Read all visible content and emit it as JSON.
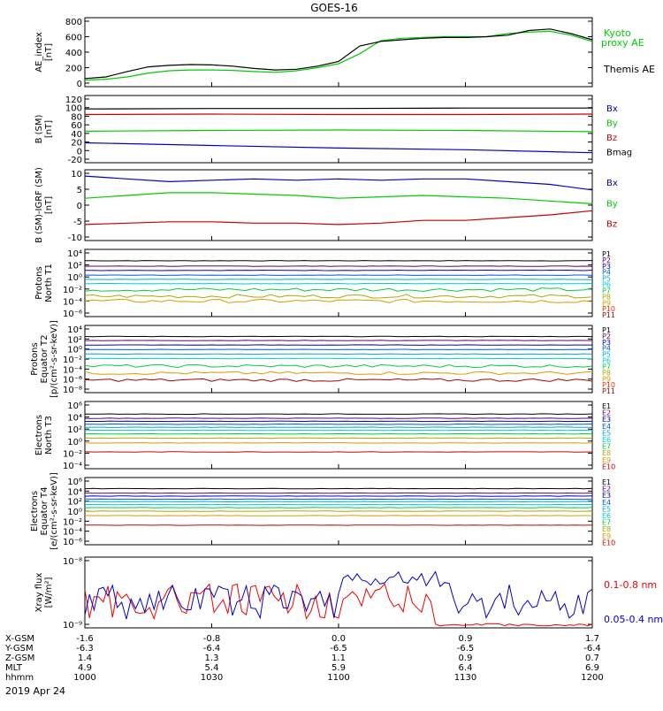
{
  "title": "GOES-16",
  "date_label": "2019 Apr 24",
  "chart_data": [
    {
      "type": "line",
      "ylabel": [
        "AE_index",
        "[nT]"
      ],
      "ylim": [
        0,
        800
      ],
      "yticks": [
        "800",
        "600",
        "400",
        "200",
        "0"
      ],
      "x": [
        1000,
        1005,
        1010,
        1015,
        1020,
        1025,
        1030,
        1035,
        1040,
        1045,
        1050,
        1055,
        1100,
        1105,
        1110,
        1115,
        1120,
        1125,
        1130,
        1135,
        1140,
        1145,
        1150,
        1155,
        1200
      ],
      "series": [
        {
          "name": "Kyoto proxy AE",
          "color": "#00cc00",
          "values": [
            40,
            50,
            80,
            130,
            160,
            170,
            170,
            165,
            150,
            140,
            160,
            200,
            250,
            380,
            550,
            580,
            590,
            600,
            600,
            600,
            640,
            660,
            670,
            620,
            540
          ]
        },
        {
          "name": "Themis AE",
          "color": "#000000",
          "values": [
            60,
            80,
            150,
            210,
            230,
            240,
            235,
            220,
            190,
            170,
            180,
            220,
            280,
            480,
            540,
            560,
            580,
            590,
            590,
            600,
            620,
            680,
            700,
            640,
            560
          ]
        }
      ],
      "legend": [
        "Kyoto proxy AE",
        "Themis AE"
      ]
    },
    {
      "type": "line",
      "ylabel": [
        "B (SM)",
        "[nT]"
      ],
      "ylim": [
        -20,
        120
      ],
      "yticks": [
        "120",
        "100",
        "80",
        "60",
        "40",
        "20",
        "0",
        "-20"
      ],
      "x": [
        1000,
        1030,
        1100,
        1130,
        1200
      ],
      "series": [
        {
          "name": "Bx",
          "color": "#0000cc",
          "values": [
            18,
            12,
            6,
            2,
            -5
          ]
        },
        {
          "name": "By",
          "color": "#00cc00",
          "values": [
            45,
            47,
            48,
            47,
            44
          ]
        },
        {
          "name": "Bz",
          "color": "#cc0000",
          "values": [
            84,
            85,
            84,
            84,
            85
          ]
        },
        {
          "name": "Bmag",
          "color": "#000000",
          "values": [
            97,
            98,
            98,
            99,
            99
          ]
        }
      ],
      "legend": [
        "Bx",
        "By",
        "Bz",
        "Bmag"
      ]
    },
    {
      "type": "line",
      "ylabel": [
        "B (SM)-IGRF (SM)",
        "[nT]"
      ],
      "ylim": [
        -12,
        11
      ],
      "yticks": [
        "10",
        "5",
        "0",
        "-5",
        "-10"
      ],
      "x": [
        1000,
        1010,
        1020,
        1030,
        1040,
        1050,
        1100,
        1110,
        1120,
        1130,
        1140,
        1150,
        1200
      ],
      "series": [
        {
          "name": "Bx",
          "color": "#0000cc",
          "values": [
            10,
            9,
            8,
            8.5,
            9,
            8.5,
            9,
            8.5,
            9,
            9,
            8,
            7,
            5
          ]
        },
        {
          "name": "By",
          "color": "#00cc00",
          "values": [
            2,
            3,
            4,
            4,
            3.5,
            3,
            2,
            2.5,
            3,
            2.5,
            2,
            1,
            0
          ]
        },
        {
          "name": "Bz",
          "color": "#cc0000",
          "values": [
            -7.5,
            -7,
            -6.5,
            -6.5,
            -7,
            -7,
            -7.5,
            -7,
            -6,
            -6,
            -5,
            -4,
            -2.5
          ]
        }
      ],
      "legend": [
        "Bx",
        "By",
        "Bz"
      ]
    },
    {
      "type": "line",
      "ylabel": [
        "Protons",
        "North T1"
      ],
      "yticks": [
        "10⁴",
        "10²",
        "10⁰",
        "10⁻²",
        "10⁻⁴",
        "10⁻⁶"
      ],
      "series": [
        {
          "name": "P1",
          "color": "#000000",
          "values": [
            2.7
          ]
        },
        {
          "name": "P2",
          "color": "#660066",
          "values": [
            1.8
          ]
        },
        {
          "name": "P3",
          "color": "#0000cc",
          "values": [
            1.1
          ]
        },
        {
          "name": "P4",
          "color": "#0055ee",
          "values": [
            0.3
          ]
        },
        {
          "name": "P5",
          "color": "#00aacc",
          "values": [
            -0.4
          ]
        },
        {
          "name": "P6",
          "color": "#00cccc",
          "values": [
            -1.1
          ]
        },
        {
          "name": "P7",
          "color": "#00cc44",
          "values": [
            -2.1
          ]
        },
        {
          "name": "P8",
          "color": "#aaaa00",
          "values": [
            -3.2
          ]
        },
        {
          "name": "P9",
          "color": "#dd9900",
          "values": [
            -4.0
          ]
        },
        {
          "name": "P10",
          "color": "#dd3300",
          "values": []
        },
        {
          "name": "P11",
          "color": "#aa0000",
          "values": []
        }
      ],
      "legend": [
        "P1",
        "P2",
        "P3",
        "P4",
        "P5",
        "P6",
        "P7",
        "P8",
        "P9",
        "P10",
        "P11"
      ]
    },
    {
      "type": "line",
      "ylabel": [
        "Protons",
        "Equator T2",
        "[p/(cm²-s-sr-keV)]"
      ],
      "yticks": [
        "10⁴",
        "10²",
        "10⁰",
        "10⁻²",
        "10⁻⁴",
        "10⁻⁶",
        "10⁻⁸"
      ],
      "series": [
        {
          "name": "P1",
          "color": "#000000",
          "values": [
            2.5
          ]
        },
        {
          "name": "P2",
          "color": "#660066",
          "values": [
            1.7
          ]
        },
        {
          "name": "P3",
          "color": "#0000cc",
          "values": [
            0.8
          ]
        },
        {
          "name": "P4",
          "color": "#0055ee",
          "values": [
            -0.1
          ]
        },
        {
          "name": "P5",
          "color": "#00aacc",
          "values": [
            -1.0
          ]
        },
        {
          "name": "P6",
          "color": "#00cccc",
          "values": [
            -1.9
          ]
        },
        {
          "name": "P7",
          "color": "#00cc44",
          "values": [
            -3.4
          ]
        },
        {
          "name": "P8",
          "color": "#aaaa00",
          "values": []
        },
        {
          "name": "P9",
          "color": "#dd9900",
          "values": [
            -4.8
          ]
        },
        {
          "name": "P10",
          "color": "#dd3300",
          "values": []
        },
        {
          "name": "P11",
          "color": "#aa0000",
          "values": [
            -6.2
          ]
        }
      ],
      "legend": [
        "P1",
        "P2",
        "P3",
        "P4",
        "P5",
        "P6",
        "P7",
        "P8",
        "P9",
        "P10",
        "P11"
      ]
    },
    {
      "type": "line",
      "ylabel": [
        "Electrons",
        "North T3"
      ],
      "yticks": [
        "10⁶",
        "10⁴",
        "10²",
        "10⁰",
        "10⁻²",
        "10⁻⁴"
      ],
      "series": [
        {
          "name": "E1",
          "color": "#000000",
          "values": [
            4.5
          ]
        },
        {
          "name": "E2",
          "color": "#660066",
          "values": [
            3.8
          ]
        },
        {
          "name": "E3",
          "color": "#0000cc",
          "values": [
            3.3
          ]
        },
        {
          "name": "E4",
          "color": "#0055ee",
          "values": [
            2.8
          ]
        },
        {
          "name": "E5",
          "color": "#00aacc",
          "values": [
            2.3
          ]
        },
        {
          "name": "E6",
          "color": "#00cccc",
          "values": [
            1.8
          ]
        },
        {
          "name": "E7",
          "color": "#00cc44",
          "values": [
            1.2
          ]
        },
        {
          "name": "E8",
          "color": "#aaaa00",
          "values": [
            0.5
          ]
        },
        {
          "name": "E9",
          "color": "#dd9900",
          "values": [
            -0.3
          ]
        },
        {
          "name": "E10",
          "color": "#cc0000",
          "values": [
            -1.8
          ]
        }
      ],
      "legend": [
        "E1",
        "E2",
        "E3",
        "E4",
        "E5",
        "E6",
        "E7",
        "E8",
        "E9",
        "E10"
      ]
    },
    {
      "type": "line",
      "ylabel": [
        "Electrons",
        "Equator T4",
        "[e/(cm²-s-sr-keV)]"
      ],
      "yticks": [
        "10⁶",
        "10⁴",
        "10²",
        "10⁰",
        "10⁻²",
        "10⁻⁴",
        "10⁻⁶"
      ],
      "series": [
        {
          "name": "E1",
          "color": "#000000",
          "values": [
            4.5
          ]
        },
        {
          "name": "E2",
          "color": "#660066",
          "values": [
            3.6
          ]
        },
        {
          "name": "E3",
          "color": "#0000cc",
          "values": [
            3.0
          ]
        },
        {
          "name": "E4",
          "color": "#0055ee",
          "values": [
            2.4
          ]
        },
        {
          "name": "E5",
          "color": "#00aacc",
          "values": [
            1.9
          ]
        },
        {
          "name": "E6",
          "color": "#00cccc",
          "values": [
            1.3
          ]
        },
        {
          "name": "E7",
          "color": "#00cc44",
          "values": [
            0.7
          ]
        },
        {
          "name": "E8",
          "color": "#aaaa00",
          "values": [
            0.0
          ]
        },
        {
          "name": "E9",
          "color": "#dd9900",
          "values": [
            -0.9
          ]
        },
        {
          "name": "E10",
          "color": "#cc0000",
          "values": [
            -2.8
          ]
        }
      ],
      "legend": [
        "E1",
        "E2",
        "E3",
        "E4",
        "E5",
        "E6",
        "E7",
        "E8",
        "E9",
        "E10"
      ]
    },
    {
      "type": "line",
      "ylabel": [
        "Xray flux",
        "[W/m²]"
      ],
      "yticks": [
        "10⁻⁸",
        "10⁻⁹"
      ],
      "series": [
        {
          "name": "0.1-0.8 nm",
          "color": "#ee0000",
          "values": []
        },
        {
          "name": "0.05-0.4 nm",
          "color": "#0000cc",
          "values": []
        }
      ],
      "legend": [
        "0.1-0.8 nm",
        "0.05-0.4 nm"
      ]
    }
  ],
  "x_axis": {
    "labels": [
      "X-GSM",
      "Y-GSM",
      "Z-GSM",
      "MLT",
      "hhmm"
    ],
    "columns": [
      [
        "-1.6",
        "-6.3",
        "1.4",
        "4.9",
        "1000"
      ],
      [
        "-0.8",
        "-6.4",
        "1.3",
        "5.4",
        "1030"
      ],
      [
        "0.0",
        "-6.5",
        "1.1",
        "5.9",
        "1100"
      ],
      [
        "0.9",
        "-6.5",
        "0.9",
        "6.4",
        "1130"
      ],
      [
        "1.7",
        "-6.4",
        "0.7",
        "6.9",
        "1200"
      ]
    ]
  }
}
